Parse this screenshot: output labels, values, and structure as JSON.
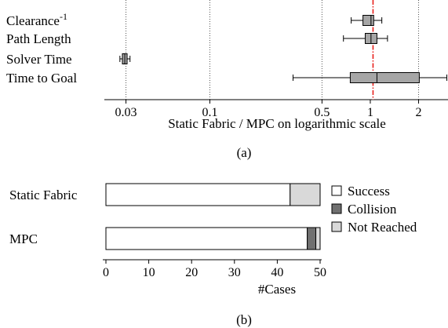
{
  "chart_data": [
    {
      "type": "boxplot",
      "caption": "(a)",
      "orientation": "horizontal",
      "xscale": "log",
      "xlabel": "Static Fabric / MPC on logarithmic scale",
      "xlim": [
        0.022,
        3.05
      ],
      "xticks": [
        {
          "value": 0.03,
          "label": "0.03"
        },
        {
          "value": 0.1,
          "label": "0.1"
        },
        {
          "value": 0.5,
          "label": "0.5"
        },
        {
          "value": 1,
          "label": "1"
        },
        {
          "value": 2,
          "label": "2"
        }
      ],
      "gridlines": [
        0.03,
        0.1,
        0.5,
        2
      ],
      "reference_line": {
        "value": 1.04,
        "color": "#e8201c",
        "style": "dash-dot"
      },
      "box_color": "#a6a6a6",
      "categories": [
        {
          "label": "Clearance",
          "sup": "-1",
          "whisker_low": 0.76,
          "q1": 0.9,
          "median": 1.01,
          "q3": 1.05,
          "whisker_high": 1.18
        },
        {
          "label": "Path Length",
          "sup": "",
          "whisker_low": 0.68,
          "q1": 0.93,
          "median": 1.01,
          "q3": 1.1,
          "whisker_high": 1.28
        },
        {
          "label": "Solver Time",
          "sup": "",
          "whisker_low": 0.0275,
          "q1": 0.0285,
          "median": 0.0295,
          "q3": 0.0305,
          "whisker_high": 0.0318
        },
        {
          "label": "Time to Goal",
          "sup": "",
          "whisker_low": 0.33,
          "q1": 0.75,
          "median": 1.1,
          "q3": 2.02,
          "whisker_high": 3.0
        }
      ]
    },
    {
      "type": "bar",
      "orientation": "horizontal",
      "stacked": true,
      "caption": "(b)",
      "xlabel": "#Cases",
      "xlim": [
        0,
        50
      ],
      "xticks": [
        0,
        10,
        20,
        30,
        40,
        50
      ],
      "categories": [
        "Static Fabric",
        "MPC"
      ],
      "series": [
        {
          "name": "Success",
          "color": "#ffffff",
          "values": [
            43,
            47
          ]
        },
        {
          "name": "Collision",
          "color": "#707070",
          "values": [
            0,
            2
          ]
        },
        {
          "name": "Not Reached",
          "color": "#d9d9d9",
          "values": [
            7,
            1
          ]
        }
      ],
      "legend_position": "right"
    }
  ]
}
